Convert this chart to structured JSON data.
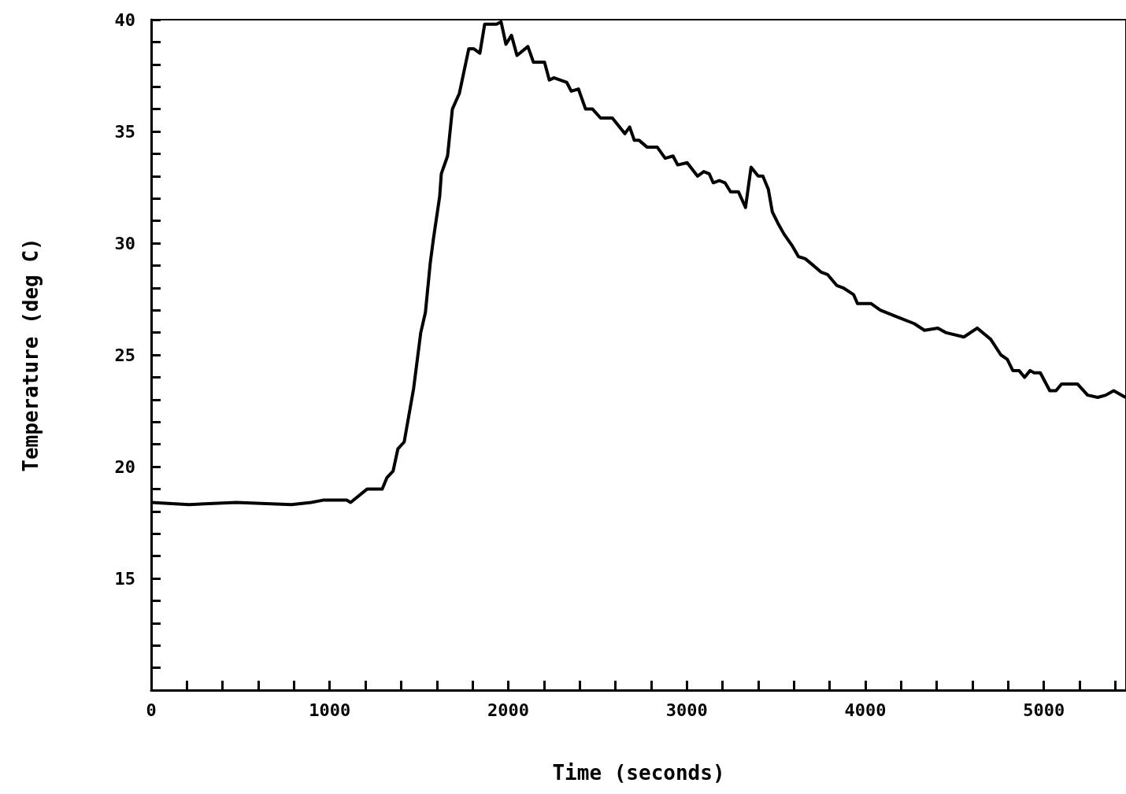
{
  "chart_data": {
    "type": "line",
    "xlabel": "Time (seconds)",
    "ylabel": "Temperature (deg C)",
    "x": [
      0,
      212,
      477,
      786,
      896,
      962,
      1095,
      1117,
      1210,
      1294,
      1320,
      1355,
      1382,
      1417,
      1470,
      1510,
      1536,
      1563,
      1581,
      1616,
      1625,
      1660,
      1687,
      1726,
      1779,
      1806,
      1841,
      1868,
      1934,
      1960,
      1987,
      2018,
      2049,
      2110,
      2141,
      2203,
      2230,
      2256,
      2327,
      2353,
      2393,
      2433,
      2472,
      2517,
      2583,
      2653,
      2680,
      2706,
      2733,
      2777,
      2834,
      2879,
      2923,
      2949,
      3002,
      3060,
      3095,
      3126,
      3148,
      3183,
      3214,
      3245,
      3289,
      3329,
      3360,
      3400,
      3426,
      3457,
      3479,
      3510,
      3545,
      3589,
      3625,
      3664,
      3709,
      3753,
      3788,
      3841,
      3876,
      3934,
      3956,
      4031,
      4084,
      4177,
      4274,
      4331,
      4406,
      4450,
      4552,
      4627,
      4702,
      4759,
      4795,
      4826,
      4861,
      4892,
      4923,
      4945,
      4980,
      5033,
      5068,
      5099,
      5188,
      5245,
      5302,
      5347,
      5391,
      5457
    ],
    "series": [
      {
        "color": "#000000",
        "values": [
          18.4,
          18.3,
          18.4,
          18.3,
          18.4,
          18.5,
          18.5,
          18.4,
          19.0,
          19.0,
          19.5,
          19.8,
          20.8,
          21.1,
          23.5,
          26.0,
          26.9,
          29.1,
          30.2,
          32.1,
          33.1,
          33.9,
          36.0,
          36.7,
          38.7,
          38.7,
          38.5,
          39.8,
          39.8,
          39.9,
          38.9,
          39.3,
          38.4,
          38.8,
          38.1,
          38.1,
          37.3,
          37.4,
          37.2,
          36.8,
          36.9,
          36.0,
          36.0,
          35.6,
          35.6,
          34.9,
          35.2,
          34.6,
          34.6,
          34.3,
          34.3,
          33.8,
          33.9,
          33.5,
          33.6,
          33.0,
          33.2,
          33.1,
          32.7,
          32.8,
          32.7,
          32.3,
          32.3,
          31.6,
          33.4,
          33.0,
          33.0,
          32.4,
          31.4,
          30.9,
          30.4,
          29.9,
          29.4,
          29.3,
          29.0,
          28.7,
          28.6,
          28.1,
          28.0,
          27.7,
          27.3,
          27.3,
          27.0,
          26.7,
          26.4,
          26.1,
          26.2,
          26.0,
          25.8,
          26.2,
          25.7,
          25.0,
          24.8,
          24.3,
          24.3,
          24.0,
          24.3,
          24.2,
          24.2,
          23.4,
          23.4,
          23.7,
          23.7,
          23.2,
          23.1,
          23.2,
          23.4,
          23.1
        ]
      }
    ],
    "xlim": [
      0,
      5460
    ],
    "xticks": [
      0,
      {
        "value": 200,
        "label": null
      },
      {
        "value": 400,
        "label": null
      },
      {
        "value": 600,
        "label": null
      },
      {
        "value": 800,
        "label": null
      },
      1000,
      {
        "value": 1200,
        "label": null
      },
      {
        "value": 1400,
        "label": null
      },
      {
        "value": 1600,
        "label": null
      },
      {
        "value": 1800,
        "label": null
      },
      2000,
      {
        "value": 2200,
        "label": null
      },
      {
        "value": 2400,
        "label": null
      },
      {
        "value": 2600,
        "label": null
      },
      {
        "value": 2800,
        "label": null
      },
      3000,
      {
        "value": 3200,
        "label": null
      },
      {
        "value": 3400,
        "label": null
      },
      {
        "value": 3600,
        "label": null
      },
      {
        "value": 3800,
        "label": null
      },
      4000,
      {
        "value": 4200,
        "label": null
      },
      {
        "value": 4400,
        "label": null
      },
      {
        "value": 4600,
        "label": null
      },
      {
        "value": 4800,
        "label": null
      },
      5000,
      {
        "value": 5200,
        "label": null
      },
      {
        "value": 5400,
        "label": null
      }
    ],
    "ylim": [
      10,
      40
    ],
    "yticks": [
      {
        "value": 11,
        "label": null
      },
      {
        "value": 12,
        "label": null
      },
      {
        "value": 13,
        "label": null
      },
      {
        "value": 14,
        "label": null
      },
      15,
      {
        "value": 16,
        "label": null
      },
      {
        "value": 17,
        "label": null
      },
      {
        "value": 18,
        "label": null
      },
      {
        "value": 19,
        "label": null
      },
      20,
      {
        "value": 21,
        "label": null
      },
      {
        "value": 22,
        "label": null
      },
      {
        "value": 23,
        "label": null
      },
      {
        "value": 24,
        "label": null
      },
      25,
      {
        "value": 26,
        "label": null
      },
      {
        "value": 27,
        "label": null
      },
      {
        "value": 28,
        "label": null
      },
      {
        "value": 29,
        "label": null
      },
      30,
      {
        "value": 31,
        "label": null
      },
      {
        "value": 32,
        "label": null
      },
      {
        "value": 33,
        "label": null
      },
      {
        "value": 34,
        "label": null
      },
      35,
      {
        "value": 36,
        "label": null
      },
      {
        "value": 37,
        "label": null
      },
      {
        "value": 38,
        "label": null
      },
      {
        "value": 39,
        "label": null
      },
      40
    ],
    "marker": "none",
    "line_style": "solid"
  }
}
